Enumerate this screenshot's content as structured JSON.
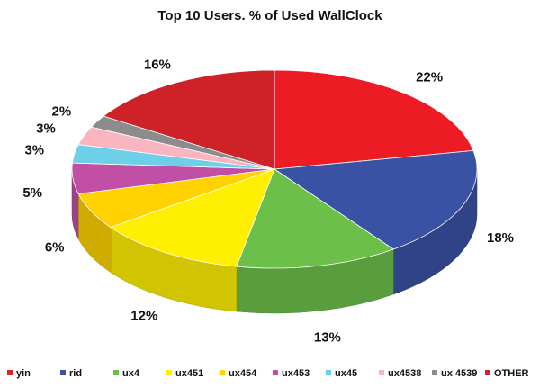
{
  "chart_data": {
    "type": "pie",
    "title": "Top 10 Users. % of Used WallClock",
    "categories": [
      "yin",
      "rid",
      "ux4",
      "ux451",
      "ux454",
      "ux453",
      "ux45",
      "ux4538",
      "ux 4539",
      "OTHER"
    ],
    "values": [
      22,
      18,
      13,
      12,
      6,
      5,
      3,
      3,
      2,
      16
    ],
    "labels": [
      "22%",
      "18%",
      "13%",
      "12%",
      "6%",
      "5%",
      "3%",
      "3%",
      "2%",
      "16%"
    ],
    "colors": [
      "#ED1C24",
      "#3A52A4",
      "#6CC04A",
      "#FFEF00",
      "#FFD200",
      "#C14FA5",
      "#6DCFE8",
      "#F9B6C0",
      "#8C8C8C",
      "#CE2128"
    ],
    "legend_position": "bottom"
  }
}
